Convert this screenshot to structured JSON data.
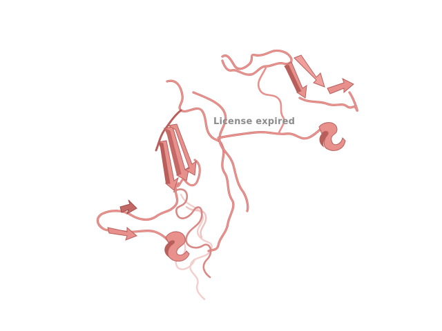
{
  "viewer": {
    "background": "#ffffff",
    "watermark": "License expired",
    "structure": {
      "representation": "cartoon",
      "color": "#e8908c",
      "shade": "#b85f5c",
      "highlight": "#f4b4b0"
    }
  }
}
